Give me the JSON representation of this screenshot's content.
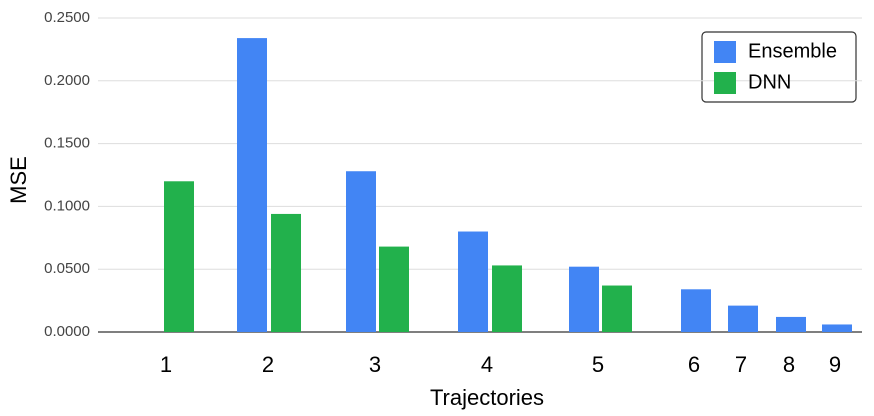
{
  "chart_data": {
    "type": "bar",
    "title_x": "Trajectories",
    "title_y": "MSE",
    "categories": [
      "1",
      "2",
      "3",
      "4",
      "5",
      "6",
      "7",
      "8",
      "9"
    ],
    "series": [
      {
        "name": "Ensemble",
        "color": "#4285f4",
        "values": [
          null,
          0.234,
          0.128,
          0.08,
          0.052,
          0.034,
          0.021,
          0.012,
          0.006
        ]
      },
      {
        "name": "DNN",
        "color": "#22b14c",
        "values": [
          0.12,
          0.094,
          0.068,
          0.053,
          0.037,
          null,
          null,
          null,
          null
        ]
      }
    ],
    "ylim": [
      0,
      0.25
    ],
    "yticks": [
      {
        "value": 0,
        "label": "0.0000"
      },
      {
        "value": 0.05,
        "label": "0.0500"
      },
      {
        "value": 0.1,
        "label": "0.1000"
      },
      {
        "value": 0.15,
        "label": "0.1500"
      },
      {
        "value": 0.2,
        "label": "0.2000"
      },
      {
        "value": 0.25,
        "label": "0.2500"
      }
    ],
    "grid": true,
    "legend": "top-right"
  }
}
